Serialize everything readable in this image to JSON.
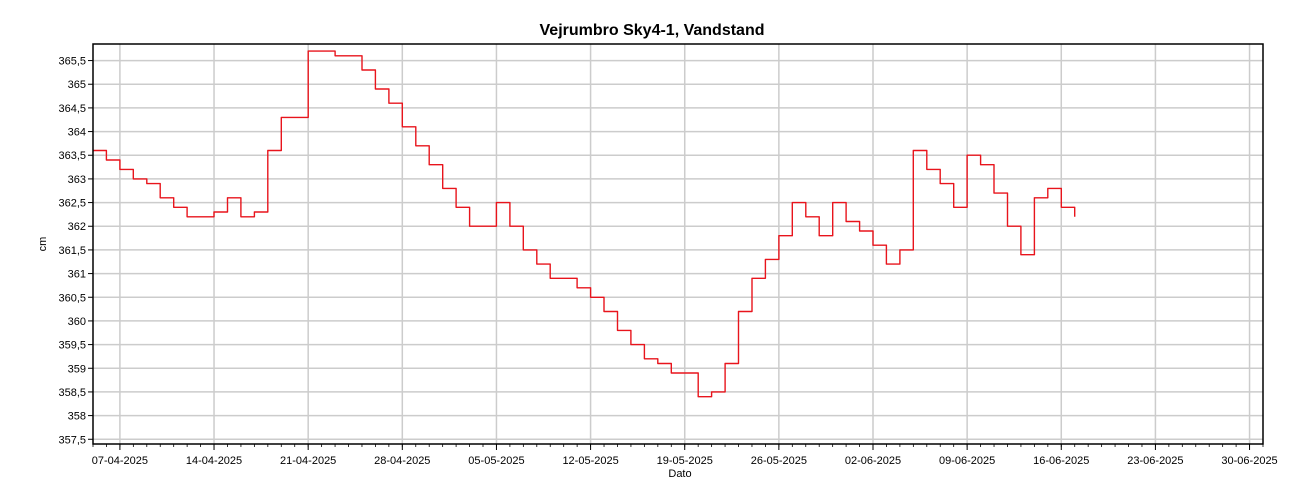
{
  "chart_data": {
    "type": "line",
    "title": "Vejrumbro Sky4-1, Vandstand",
    "xlabel": "Dato",
    "ylabel": "cm",
    "x_tick_labels": [
      "07-04-2025",
      "14-04-2025",
      "21-04-2025",
      "28-04-2025",
      "05-05-2025",
      "12-05-2025",
      "19-05-2025",
      "26-05-2025",
      "02-06-2025",
      "09-06-2025",
      "16-06-2025",
      "23-06-2025",
      "30-06-2025"
    ],
    "y_tick_labels": [
      "357,5",
      "358",
      "358,5",
      "359",
      "359,5",
      "360",
      "360,5",
      "361",
      "361,5",
      "362",
      "362,5",
      "363",
      "363,5",
      "364",
      "364,5",
      "365",
      "365,5"
    ],
    "xlim": [
      "2025-04-05",
      "2025-07-01"
    ],
    "ylim": [
      357.4,
      365.85
    ],
    "grid": true,
    "series": [
      {
        "color": "#e8141c",
        "x": [
          "2025-04-05",
          "2025-04-06",
          "2025-04-07",
          "2025-04-08",
          "2025-04-09",
          "2025-04-10",
          "2025-04-11",
          "2025-04-12",
          "2025-04-13",
          "2025-04-14",
          "2025-04-15",
          "2025-04-16",
          "2025-04-17",
          "2025-04-18",
          "2025-04-19",
          "2025-04-20",
          "2025-04-21",
          "2025-04-23",
          "2025-04-25",
          "2025-04-26",
          "2025-04-27",
          "2025-04-28",
          "2025-04-29",
          "2025-04-30",
          "2025-05-01",
          "2025-05-02",
          "2025-05-03",
          "2025-05-04",
          "2025-05-05",
          "2025-05-06",
          "2025-05-07",
          "2025-05-08",
          "2025-05-09",
          "2025-05-10",
          "2025-05-11",
          "2025-05-12",
          "2025-05-13",
          "2025-05-14",
          "2025-05-15",
          "2025-05-16",
          "2025-05-17",
          "2025-05-18",
          "2025-05-19",
          "2025-05-20",
          "2025-05-21",
          "2025-05-22",
          "2025-05-23",
          "2025-05-24",
          "2025-05-25",
          "2025-05-26",
          "2025-05-27",
          "2025-05-28",
          "2025-05-29",
          "2025-05-30",
          "2025-05-31",
          "2025-06-01",
          "2025-06-02",
          "2025-06-03",
          "2025-06-04",
          "2025-06-05",
          "2025-06-06",
          "2025-06-07",
          "2025-06-08",
          "2025-06-09",
          "2025-06-10",
          "2025-06-11",
          "2025-06-12",
          "2025-06-13",
          "2025-06-14",
          "2025-06-15",
          "2025-06-16",
          "2025-06-17"
        ],
        "values": [
          363.6,
          363.4,
          363.2,
          363.0,
          362.9,
          362.6,
          362.4,
          362.2,
          362.2,
          362.3,
          362.6,
          362.2,
          362.3,
          363.6,
          364.3,
          364.3,
          365.7,
          365.6,
          365.3,
          364.9,
          364.6,
          364.1,
          363.7,
          363.3,
          362.8,
          362.4,
          362.0,
          362.0,
          362.5,
          362.0,
          361.5,
          361.2,
          360.9,
          360.9,
          360.7,
          360.5,
          360.2,
          359.8,
          359.5,
          359.2,
          359.1,
          358.9,
          358.9,
          358.4,
          358.5,
          359.1,
          360.2,
          360.9,
          361.3,
          361.8,
          362.5,
          362.2,
          361.8,
          362.5,
          362.1,
          361.9,
          361.6,
          361.2,
          361.5,
          363.6,
          363.2,
          362.9,
          362.4,
          363.5,
          363.3,
          362.7,
          362.0,
          361.4,
          362.6,
          362.8,
          362.4,
          362.2
        ]
      }
    ]
  }
}
